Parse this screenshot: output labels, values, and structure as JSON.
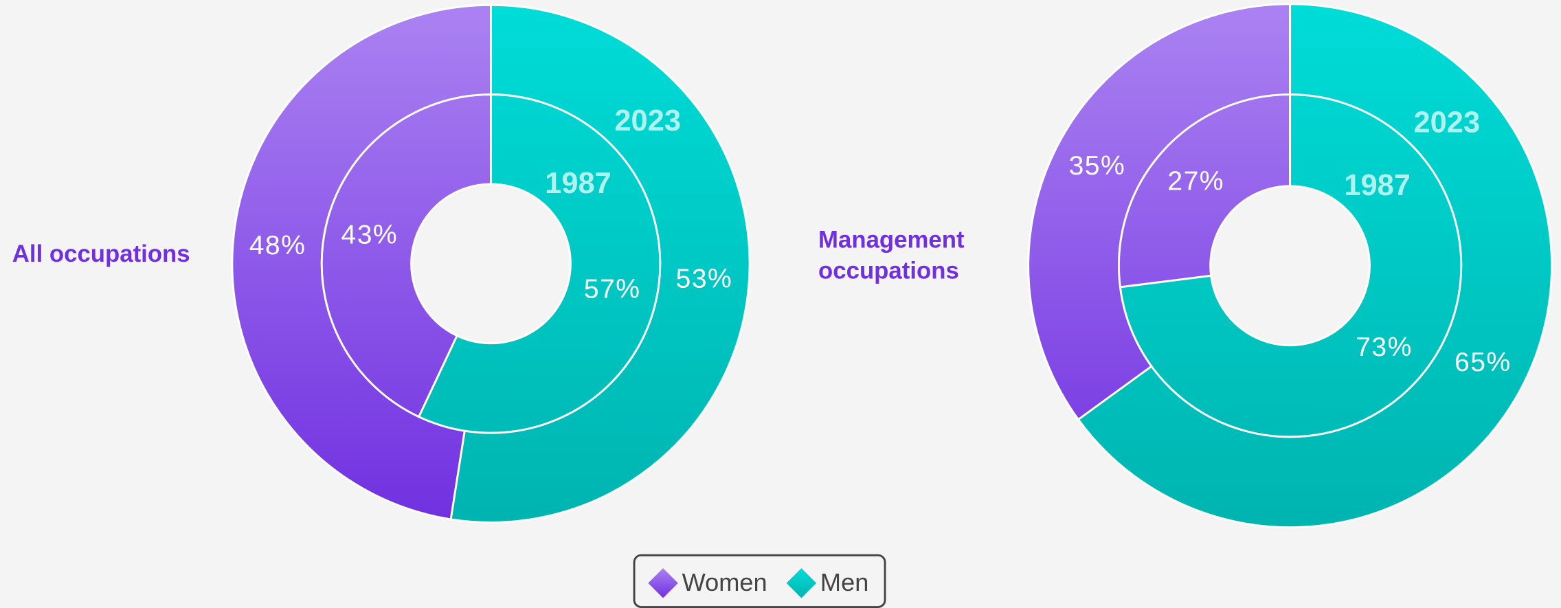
{
  "chart_data": [
    {
      "type": "donut",
      "title": "All occupations",
      "rings": [
        {
          "name": "2023",
          "values": [
            48,
            53
          ],
          "value_labels": [
            "48%",
            "53%"
          ]
        },
        {
          "name": "1987",
          "values": [
            43,
            57
          ],
          "value_labels": [
            "43%",
            "57%"
          ]
        }
      ]
    },
    {
      "type": "donut",
      "title": "Management occupations",
      "rings": [
        {
          "name": "2023",
          "values": [
            35,
            65
          ],
          "value_labels": [
            "35%",
            "65%"
          ]
        },
        {
          "name": "1987",
          "values": [
            27,
            73
          ],
          "value_labels": [
            "27%",
            "73%"
          ]
        }
      ]
    }
  ],
  "legend": [
    {
      "name": "Women",
      "color": "#7030e0",
      "light": "#ab82f2"
    },
    {
      "name": "Men",
      "color": "#00b4b0",
      "light": "#00dcd8"
    }
  ]
}
